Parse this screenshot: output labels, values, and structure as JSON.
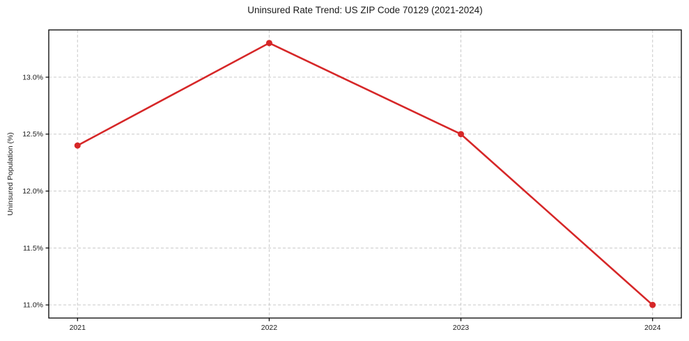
{
  "figure": {
    "title": "Uninsured Rate Trend: US ZIP Code 70129 (2021-2024)",
    "ylabel": "Uninsured Population (%)"
  },
  "chart_data": {
    "type": "line",
    "title": "Uninsured Rate Trend: US ZIP Code 70129 (2021-2024)",
    "xlabel": "",
    "ylabel": "Uninsured Population (%)",
    "x": [
      2021,
      2022,
      2023,
      2024
    ],
    "series": [
      {
        "name": "uninsured-rate",
        "values": [
          12.4,
          13.3,
          12.5,
          11.0
        ]
      }
    ],
    "xticks": {
      "values": [
        2021,
        2022,
        2023,
        2024
      ],
      "labels": [
        "2021",
        "2022",
        "2023",
        "2024"
      ]
    },
    "yticks": {
      "values": [
        11.0,
        11.5,
        12.0,
        12.5,
        13.0
      ],
      "labels": [
        "11.0%",
        "11.5%",
        "12.0%",
        "12.5%",
        "13.0%"
      ]
    },
    "xlim": [
      2020.85,
      2024.15
    ],
    "ylim": [
      10.885,
      13.415
    ],
    "grid": "dashed-both",
    "legend": "none",
    "style": {
      "line_color": "#d62728",
      "marker": "circle",
      "marker_radius": 4.5,
      "line_width": 2.6,
      "grid_color": "#c9c9c9",
      "axis_color": "#000000",
      "text_color": "#1a1a1a",
      "background": "#ffffff"
    }
  }
}
